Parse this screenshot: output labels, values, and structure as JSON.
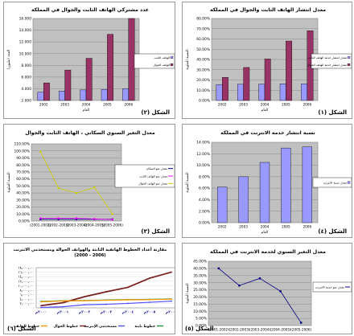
{
  "chart_data": [
    {
      "id": "p1",
      "type": "bar",
      "title": "معدل انتشار الهاتف الثابت والجوال في المملكة",
      "categories": [
        "2002",
        "2003",
        "2004",
        "2005",
        "2006"
      ],
      "series": [
        {
          "name": "معدل انتشار خدمة الهاتف الثابت",
          "color": "#9999ff",
          "values": [
            15.5,
            15.8,
            15.9,
            16.3,
            16.2
          ]
        },
        {
          "name": "معدل انتشار خدمة الهاتف الجوال",
          "color": "#993366",
          "values": [
            22.6,
            32.2,
            40.5,
            58.0,
            68.0
          ]
        }
      ],
      "ylim": [
        0,
        80
      ],
      "yticks": [
        "0.00%",
        "10.00%",
        "20.00%",
        "30.00%",
        "40.00%",
        "50.00%",
        "60.00%",
        "70.00%",
        "80.00%"
      ],
      "xlabel": "العام",
      "ylabel": "النسبة المئوية",
      "legend": "middle-right",
      "grid": true,
      "caption": "الشكل (١)"
    },
    {
      "id": "p2",
      "type": "bar",
      "title": "عدد مشتركي الهاتف الثابت والجوال في المملكة",
      "categories": [
        "2002",
        "2003",
        "2004",
        "2005",
        "2006"
      ],
      "series": [
        {
          "name": "الهاتف الثابت",
          "color": "#9999ff",
          "values": [
            3.4,
            3.6,
            3.8,
            3.9,
            4.0
          ]
        },
        {
          "name": "الهاتف الجوال",
          "color": "#993366",
          "values": [
            5.0,
            7.2,
            9.2,
            13.3,
            16.0
          ]
        }
      ],
      "ylim": [
        2,
        16
      ],
      "yticks": [
        "2.000",
        "4.000",
        "6.000",
        "8.000",
        "10.000",
        "12.000",
        "14.000",
        "16.000"
      ],
      "xlabel": "العام",
      "ylabel": "العدد (مليون)",
      "legend": "middle-right",
      "grid": true,
      "caption": "الشكل (٢)"
    },
    {
      "id": "p3",
      "type": "line",
      "title": "معدل التغير السنوي السكاني ، الهاتف الثابت والجوال",
      "categories": [
        "(2001-2002)",
        "(2002-2003)",
        "(2003-2004)",
        "(2004-2005)",
        "(2005-2006)"
      ],
      "series": [
        {
          "name": "معدل نمو السكان",
          "color": "#000080",
          "values": [
            2.5,
            2.5,
            2.5,
            2.5,
            2.5
          ]
        },
        {
          "name": "معدل نمو الهاتف الثابت",
          "color": "#ff00ff",
          "values": [
            4,
            4,
            4,
            3,
            2
          ]
        },
        {
          "name": "معدل نمو الهاتف الجوال",
          "color": "#cccc00",
          "values": [
            99,
            47,
            40,
            48,
            10
          ]
        }
      ],
      "ylim": [
        0,
        110
      ],
      "yticks": [
        "0.00%",
        "10.00%",
        "20.00%",
        "30.00%",
        "40.00%",
        "50.00%",
        "60.00%",
        "70.00%",
        "80.00%",
        "90.00%",
        "100.00%",
        "110.00%"
      ],
      "xlabel": "",
      "ylabel": "النسبة المئوية",
      "legend": "middle-right",
      "grid": true,
      "caption": "الشكل (٣)"
    },
    {
      "id": "p4",
      "type": "bar",
      "title": "نسبة انتشار خدمة الانترنت في المملكة",
      "categories": [
        "2002",
        "2003",
        "2004",
        "2005",
        "2006"
      ],
      "series": [
        {
          "name": "معدل نسبة الانترنت",
          "color": "#9999ff",
          "values": [
            6.2,
            8.0,
            10.5,
            13.0,
            13.2
          ]
        }
      ],
      "ylim": [
        0,
        14
      ],
      "yticks": [
        "0.00%",
        "2.00%",
        "4.00%",
        "6.00%",
        "8.00%",
        "10.00%",
        "12.00%",
        "14.00%"
      ],
      "xlabel": "العام",
      "ylabel": "النسبة المئوية",
      "legend": "middle-right",
      "grid": true,
      "caption": "الشكل (٤)"
    },
    {
      "id": "p5",
      "type": "line",
      "title": "مقارنة أعداد الخطوط الهاتفية الثابتة والهواتف الجوالة ومستخدمي الانترنت",
      "subtitle": "(2000 - 2006)",
      "categories": [
        "٢٠٠٠م",
        "٢٠٠١م",
        "٢٠٠٢م",
        "٢٠٠٣م",
        "٢٠٠٤م",
        "٢٠٠٥م",
        "٢٠٠٦م"
      ],
      "series": [
        {
          "name": "خطوط ثابتة",
          "color": "#1a8f3c",
          "values": [
            2.9,
            3.2,
            3.3,
            3.5,
            3.7,
            3.8,
            4.0
          ]
        },
        {
          "name": "مستخدمي الإنترنت",
          "color": "#4d4dff",
          "values": [
            0.2,
            0.5,
            1.4,
            1.6,
            2.0,
            2.5,
            3.0
          ]
        },
        {
          "name": "خطوط الجوال",
          "color": "#7a2020",
          "values": [
            1.0,
            2.3,
            5.0,
            7.2,
            9.2,
            13.3,
            16.0
          ]
        },
        {
          "name": "خطوط الهاتف",
          "color": "#ff9900",
          "values": [
            2.7,
            3.1,
            3.2,
            3.4,
            3.6,
            3.7,
            3.9
          ]
        }
      ],
      "ylim": [
        0,
        18
      ],
      "yticks": [
        "٠",
        "٢٫٠٠٠٫٠٠٠",
        "٤٫٠٠٠٫٠٠٠",
        "٦٫٠٠٠٫٠٠٠",
        "٨٫٠٠٠٫٠٠٠",
        "١٠٫٠٠٠٫٠٠٠",
        "١٢٫٠٠٠٫٠٠٠",
        "١٤٫٠٠٠٫٠٠٠",
        "١٦٫٠٠٠٫٠٠٠",
        "١٨٫٠٠٠٫٠٠٠"
      ],
      "legend": "bottom",
      "grid": true,
      "caption": "الشكل (٦)"
    },
    {
      "id": "p6",
      "type": "line",
      "title": "معدل التغير السنوي لخدمة الانترنت في المملكة",
      "categories": [
        "(2001-2002)",
        "(2002-2003)",
        "(2003-2004)",
        "(2004-2005)",
        "(2005-2006)"
      ],
      "series": [
        {
          "name": "معدل نمو خدمة الانترنت",
          "color": "#000080",
          "values": [
            40,
            28,
            33,
            24,
            2
          ]
        }
      ],
      "ylim": [
        0,
        45
      ],
      "yticks": [
        "0.00%",
        "5.00%",
        "10.00%",
        "15.00%",
        "20.00%",
        "25.00%",
        "30.00%",
        "35.00%",
        "40.00%",
        "45.00%"
      ],
      "xlabel": "",
      "ylabel": "النسبة المئوية",
      "legend": "middle-right",
      "grid": true,
      "caption": "الشكل (٥)"
    }
  ]
}
